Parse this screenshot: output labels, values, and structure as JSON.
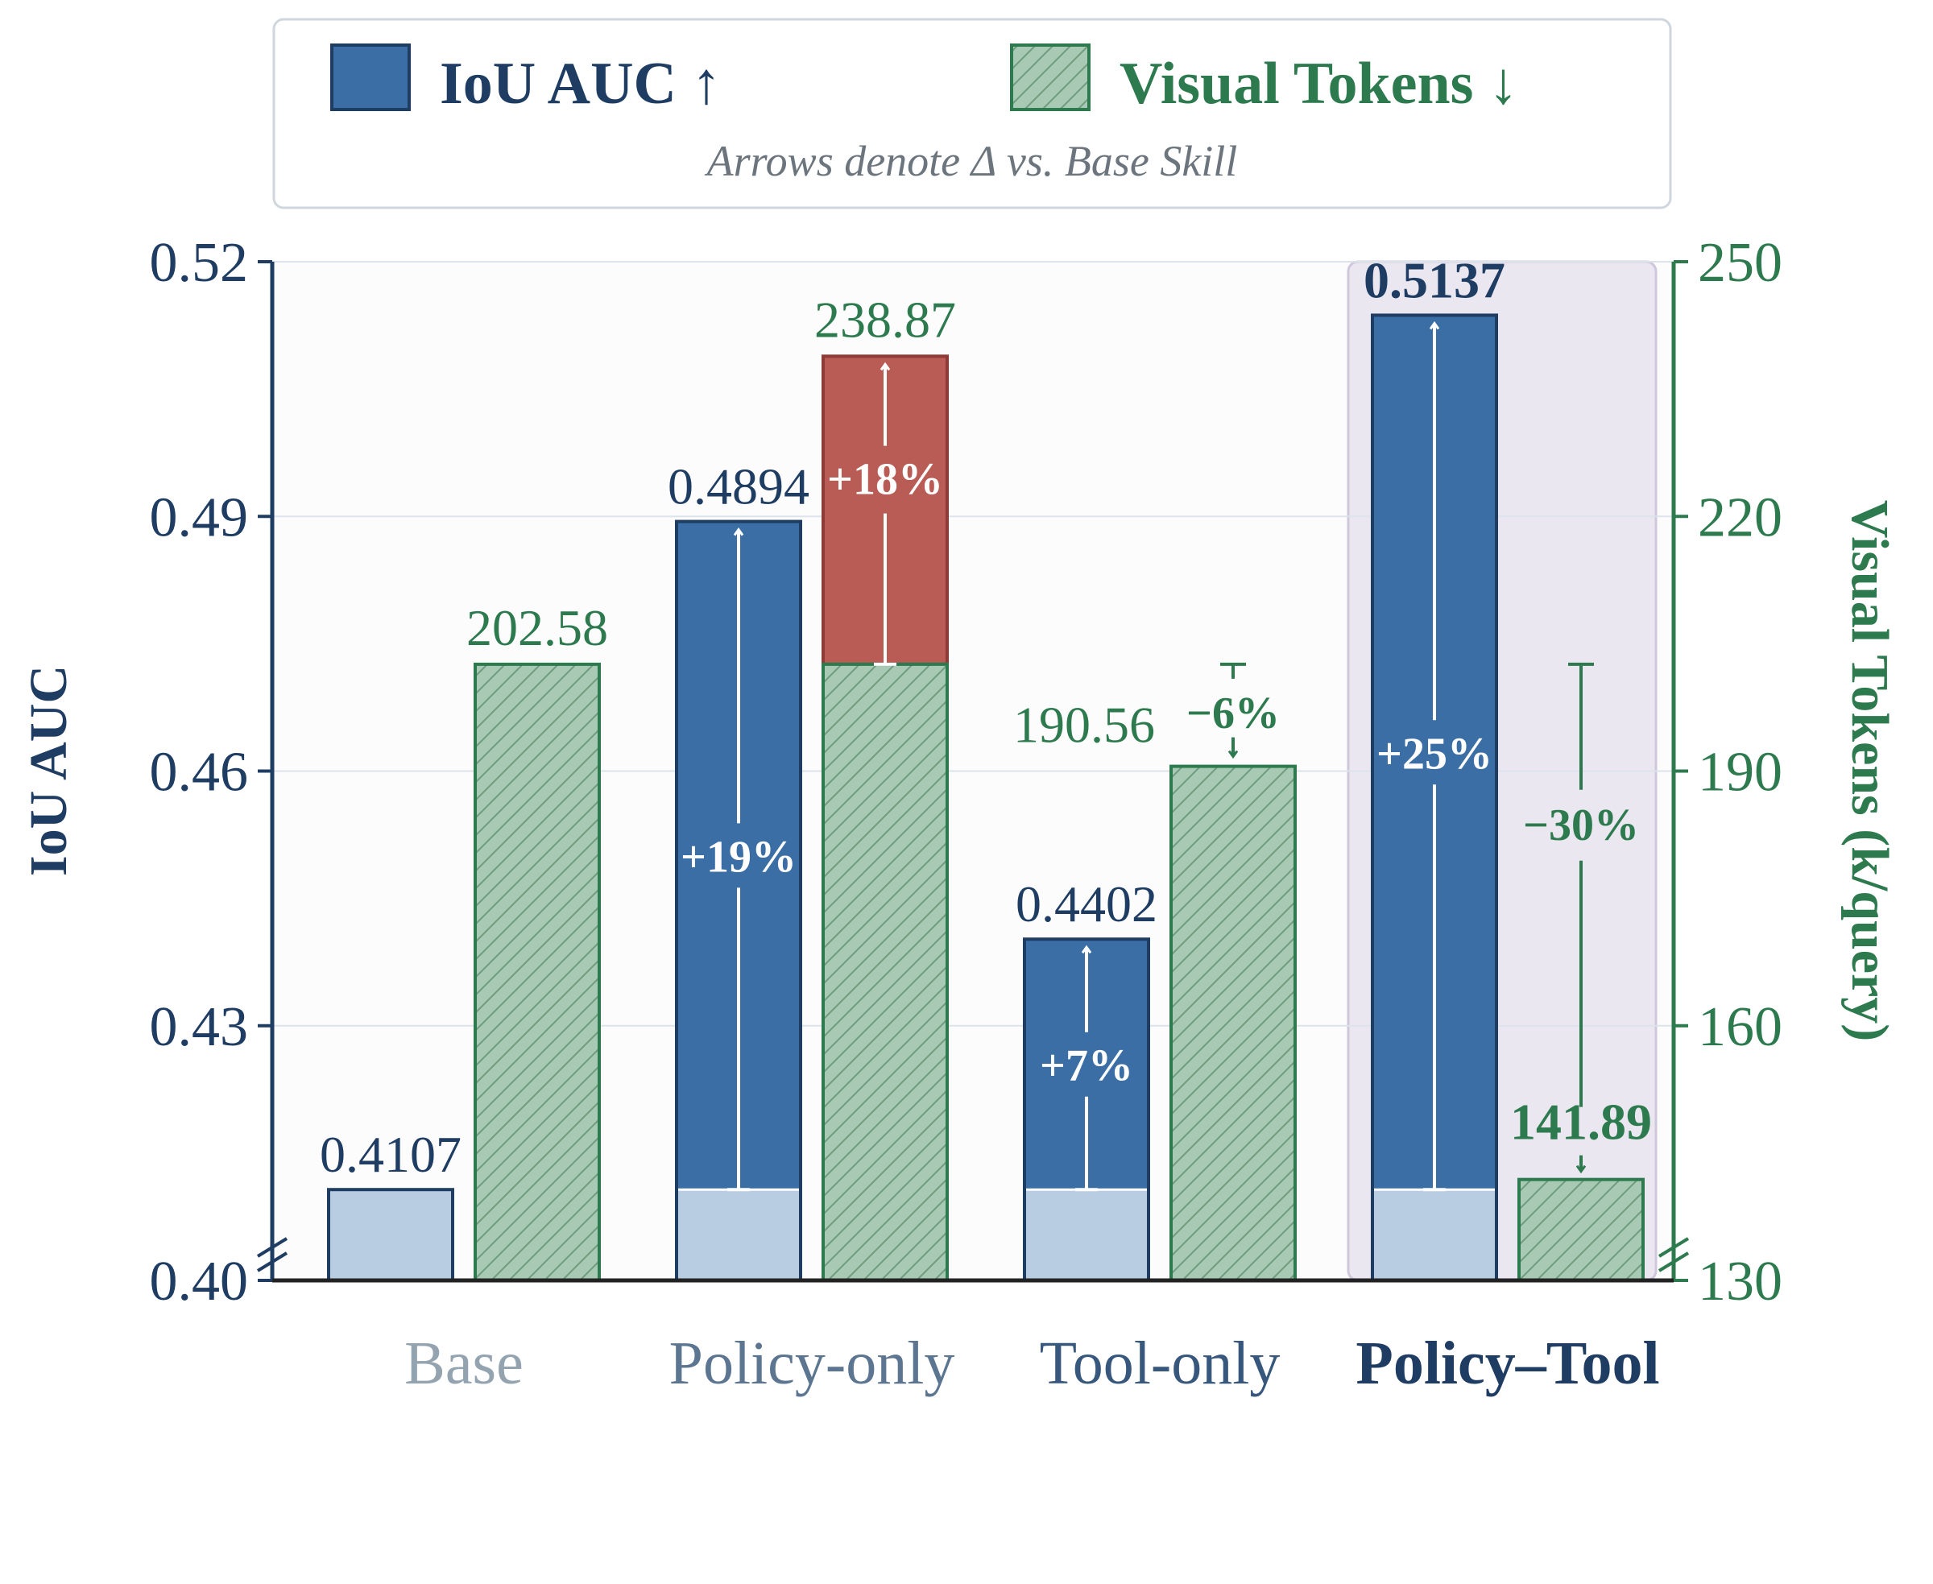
{
  "chart_data": {
    "type": "bar",
    "categories": [
      "Base",
      "Policy-only",
      "Tool-only",
      "Policy–Tool"
    ],
    "series": [
      {
        "name": "IoU AUC ↑",
        "axis": "left",
        "values": [
          0.4107,
          0.4894,
          0.4402,
          0.5137
        ],
        "value_labels": [
          "0.4107",
          "0.4894",
          "0.4402",
          "0.5137"
        ],
        "delta_labels": [
          "",
          "+19%",
          "+7%",
          "+25%"
        ],
        "color": "#3b6ea5",
        "base_color": "#b8cce2"
      },
      {
        "name": "Visual Tokens ↓",
        "axis": "right",
        "values": [
          202.58,
          238.87,
          190.56,
          141.89
        ],
        "value_labels": [
          "202.58",
          "238.87",
          "190.56",
          "141.89"
        ],
        "delta_labels": [
          "",
          "+18%",
          "−6%",
          "−30%"
        ],
        "color": "#a8c9b3",
        "increase_color": "#b85c55"
      }
    ],
    "legend_note": "Arrows denote Δ vs. Base Skill",
    "legend_placement": "top-center",
    "ylabel_left": "IoU AUC",
    "ylabel_right": "Visual Tokens (k/query)",
    "ylim_left": [
      0.4,
      0.52
    ],
    "ylim_right": [
      130,
      250
    ],
    "yticks_left": [
      "0.40",
      "0.43",
      "0.46",
      "0.49",
      "0.52"
    ],
    "yticks_right": [
      "130",
      "160",
      "190",
      "220",
      "250"
    ],
    "highlight_category": "Policy–Tool",
    "grid": true,
    "axis_break": true
  },
  "colors": {
    "iou": "#3b6ea5",
    "iou_dark": "#1f3d63",
    "tokens": "#2e7a4f",
    "tokens_fill": "#a8c9b3",
    "increase": "#b85c55",
    "highlight_bg": "#ebe7f1"
  }
}
